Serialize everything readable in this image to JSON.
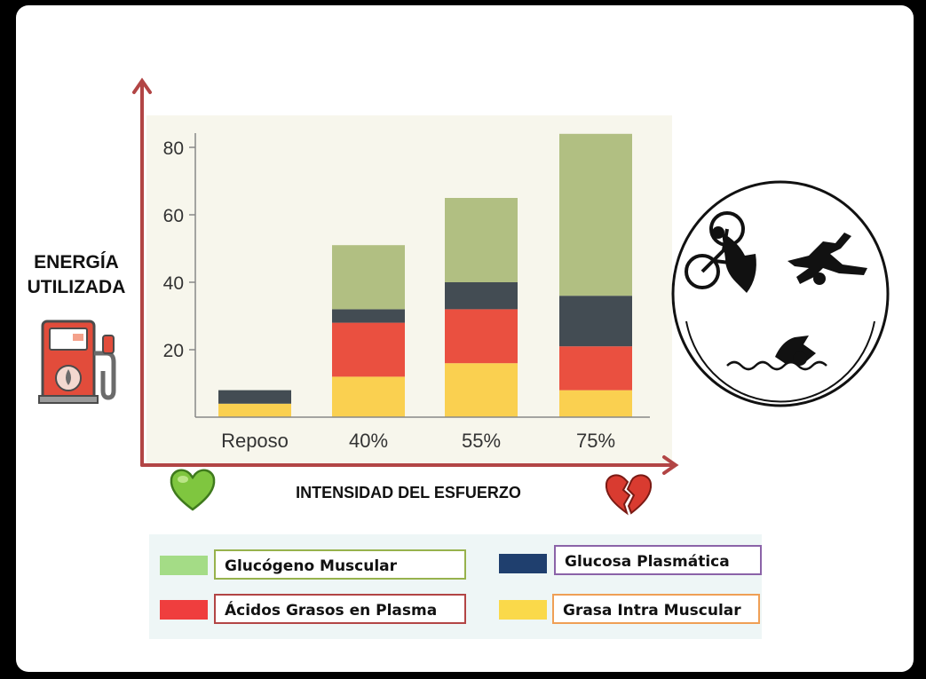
{
  "y_axis_title_line1": "ENERGÍA",
  "y_axis_title_line2": "UTILIZADA",
  "x_axis_title": "INTENSIDAD DEL ESFUERZO",
  "icons": [
    "fuel-pump-icon",
    "green-heart-icon",
    "broken-heart-icon",
    "triathlon-icon"
  ],
  "colors": {
    "glucogeno_bar": "#b1bf82",
    "glucosa_bar": "#434c53",
    "acidos_bar": "#ea5040",
    "grasa_bar": "#fad050",
    "axis_arrow": "#b24545"
  },
  "legend": [
    {
      "label": "Glucógeno Muscular",
      "swatch": "#a4dc86",
      "border": "#97b24d"
    },
    {
      "label": "Glucosa Plasmática",
      "swatch": "#1f3f6e",
      "border": "#8b63a8"
    },
    {
      "label": "Ácidos Grasos en Plasma",
      "swatch": "#ef3e3e",
      "border": "#b24545"
    },
    {
      "label": "Grasa Intra Muscular",
      "swatch": "#fad94a",
      "border": "#ef9f55"
    }
  ],
  "chart_data": {
    "type": "bar",
    "stacked": true,
    "categories": [
      "Reposo",
      "40%",
      "55%",
      "75%"
    ],
    "series": [
      {
        "name": "Grasa Intra Muscular",
        "values": [
          4,
          12,
          16,
          8
        ]
      },
      {
        "name": "Ácidos Grasos en Plasma",
        "values": [
          0,
          16,
          16,
          13
        ]
      },
      {
        "name": "Glucosa Plasmática",
        "values": [
          4,
          4,
          8,
          15
        ]
      },
      {
        "name": "Glucógeno Muscular",
        "values": [
          0,
          19,
          25,
          48
        ]
      }
    ],
    "yticks": [
      20,
      40,
      60,
      80
    ],
    "ylim": [
      0,
      85
    ],
    "grid": false,
    "legend_position": "bottom"
  }
}
